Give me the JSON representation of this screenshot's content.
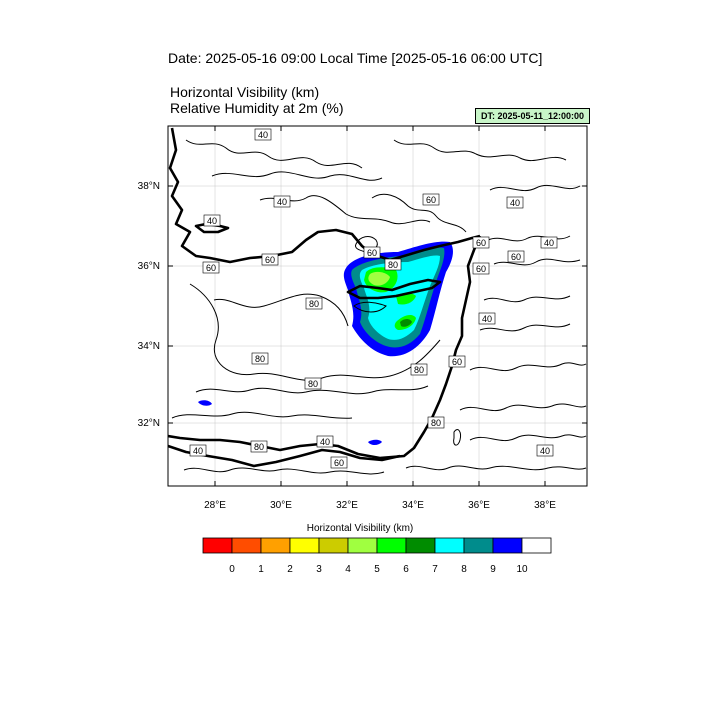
{
  "header": {
    "date_line": "Date: 2025-05-16  09:00 Local Time [2025-05-16  06:00 UTC]",
    "field_line_1": "Horizontal Visibility   (km)",
    "field_line_2": "Relative Humidity at 2m   (%)",
    "dt_badge": "DT: 2025-05-11_12:00:00"
  },
  "map": {
    "lat_labels": [
      "38°N",
      "36°N",
      "34°N",
      "32°N"
    ],
    "lon_labels": [
      "28°E",
      "30°E",
      "32°E",
      "34°E",
      "36°E",
      "38°E"
    ],
    "contour_labels": [
      "40",
      "40",
      "40",
      "60",
      "40",
      "40",
      "60",
      "60",
      "60",
      "80",
      "60",
      "60",
      "80",
      "40",
      "60",
      "80",
      "80",
      "80",
      "60",
      "80",
      "40",
      "40",
      "80",
      "60",
      "40"
    ]
  },
  "colorbar": {
    "title": "Horizontal Visibility  (km)",
    "colors": [
      "#ff0000",
      "#ff4d00",
      "#ffa000",
      "#ffff00",
      "#cccc00",
      "#a0ff40",
      "#00ff00",
      "#008c00",
      "#00ffff",
      "#008c8c",
      "#0000ff",
      "#ffffff"
    ],
    "tick_labels": [
      "0",
      "1",
      "2",
      "3",
      "4",
      "5",
      "6",
      "7",
      "8",
      "9",
      "10"
    ]
  }
}
